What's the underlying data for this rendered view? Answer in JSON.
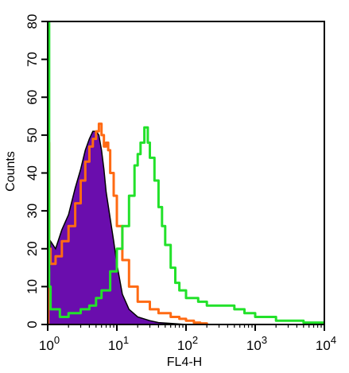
{
  "chart_data": {
    "type": "area",
    "xlabel": "FL4-H",
    "ylabel": "Counts",
    "xscale": "log",
    "xlim": [
      1,
      10000
    ],
    "ylim": [
      0,
      80
    ],
    "grid": false,
    "x_ticks": [
      {
        "value": 1,
        "base": "10",
        "exp": "0"
      },
      {
        "value": 10,
        "base": "10",
        "exp": "1"
      },
      {
        "value": 100,
        "base": "10",
        "exp": "2"
      },
      {
        "value": 1000,
        "base": "10",
        "exp": "3"
      },
      {
        "value": 10000,
        "base": "10",
        "exp": "4"
      }
    ],
    "y_ticks": [
      "0",
      "10",
      "20",
      "30",
      "40",
      "50",
      "60",
      "70",
      "80"
    ],
    "series": [
      {
        "color": "#6a0dad",
        "style": "filled",
        "x": [
          1,
          1.1,
          1.3,
          1.6,
          2,
          2.5,
          3,
          3.5,
          4,
          4.5,
          5,
          5.5,
          6,
          6.5,
          7,
          8,
          9,
          10,
          12,
          15,
          20,
          30,
          40,
          60,
          100
        ],
        "y": [
          0,
          22,
          20,
          25,
          29,
          36,
          41,
          46,
          49,
          51,
          51,
          50,
          46,
          41,
          35,
          28,
          22,
          16,
          8,
          4,
          2,
          1,
          0.5,
          0.3,
          0
        ]
      },
      {
        "color": "#ff6a13",
        "style": "line",
        "x": [
          1,
          1.02,
          1.05,
          1.1,
          1.3,
          1.6,
          2,
          2.5,
          3,
          3.5,
          4,
          4.5,
          5,
          5.5,
          6,
          6.5,
          7,
          7.5,
          8,
          9,
          10,
          12,
          15,
          20,
          30,
          40,
          60,
          80,
          100,
          130,
          160,
          200
        ],
        "y": [
          0,
          48,
          20,
          16,
          18,
          22,
          26,
          32,
          38,
          43,
          47,
          49,
          51,
          53,
          50,
          47,
          48,
          46,
          40,
          34,
          26,
          17,
          10,
          6,
          4,
          3,
          2,
          1.5,
          1,
          0.5,
          0.3,
          0
        ]
      },
      {
        "color": "#22e12a",
        "style": "line",
        "x": [
          1,
          1.02,
          1.05,
          1.1,
          1.5,
          2,
          3,
          4,
          5,
          6,
          8,
          10,
          12,
          15,
          18,
          20,
          22,
          25,
          28,
          30,
          35,
          40,
          45,
          50,
          60,
          70,
          80,
          100,
          150,
          200,
          300,
          500,
          700,
          1000,
          1500,
          2000,
          3000,
          5000,
          7000,
          10000
        ],
        "y": [
          80,
          80,
          10,
          4,
          2,
          3,
          4,
          5,
          7,
          9,
          14,
          20,
          26,
          34,
          42,
          45,
          48,
          52,
          48,
          44,
          38,
          31,
          26,
          21,
          15,
          11,
          9,
          7,
          6,
          5,
          5,
          4,
          3,
          2,
          2,
          1,
          1,
          0.5,
          0.5,
          0
        ]
      }
    ]
  }
}
